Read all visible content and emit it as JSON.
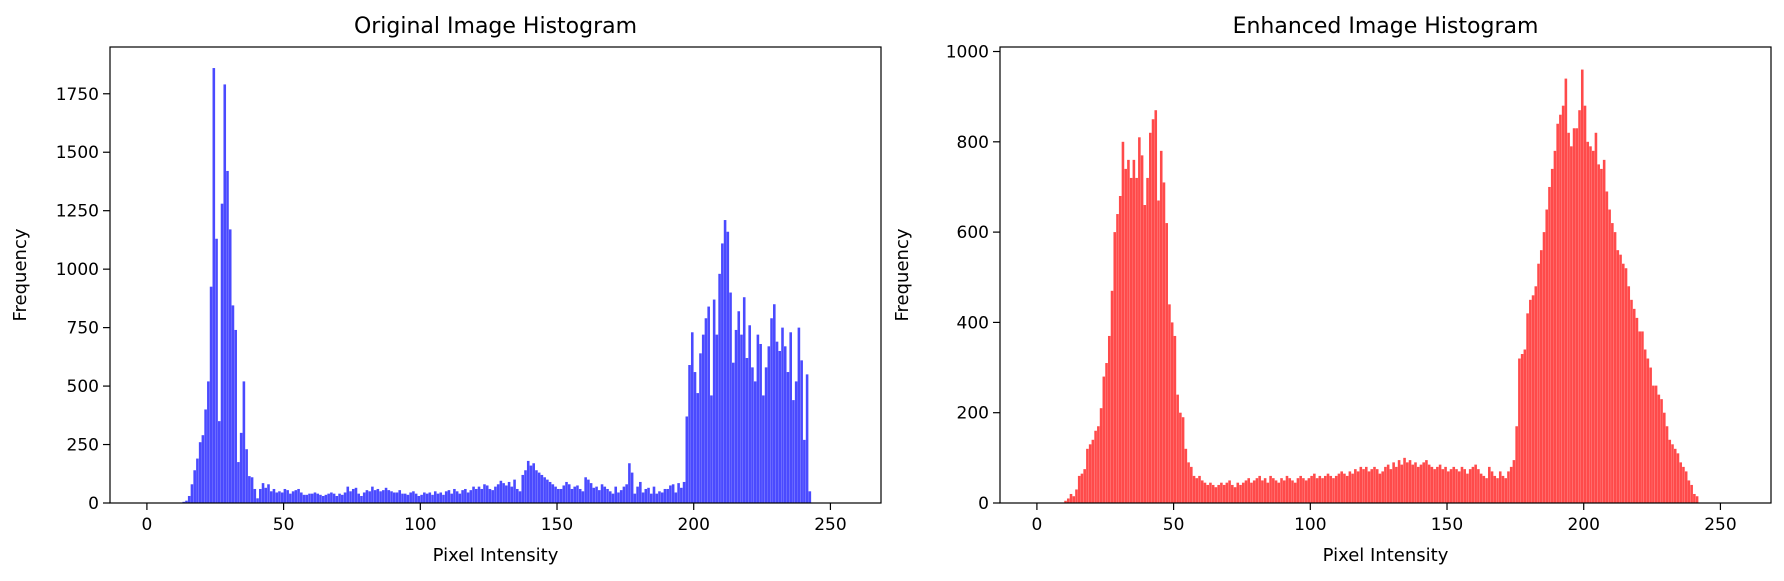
{
  "chart_data": [
    {
      "type": "bar",
      "title": "Original Image Histogram",
      "xlabel": "Pixel Intensity",
      "ylabel": "Frequency",
      "color": "#4a4aff",
      "xlim": [
        -13.5,
        268.5
      ],
      "ylim": [
        0,
        1950
      ],
      "xticks": [
        "0",
        "50",
        "100",
        "150",
        "200",
        "250"
      ],
      "yticks": [
        "0",
        "250",
        "500",
        "750",
        "1000",
        "1250",
        "1500",
        "1750"
      ],
      "xtick_values": [
        0,
        50,
        100,
        150,
        200,
        250
      ],
      "ytick_values": [
        0,
        250,
        500,
        750,
        1000,
        1250,
        1500,
        1750
      ],
      "grid": false,
      "bins": 256,
      "x_start": 0,
      "values": [
        0,
        0,
        0,
        0,
        0,
        0,
        0,
        0,
        0,
        0,
        0,
        0,
        0,
        5,
        10,
        30,
        80,
        140,
        190,
        260,
        290,
        400,
        520,
        925,
        1860,
        1130,
        350,
        1280,
        1790,
        1420,
        1170,
        845,
        740,
        175,
        300,
        520,
        230,
        115,
        110,
        60,
        20,
        60,
        85,
        65,
        80,
        50,
        60,
        45,
        50,
        45,
        60,
        55,
        40,
        50,
        55,
        60,
        45,
        35,
        35,
        40,
        40,
        45,
        40,
        35,
        30,
        35,
        40,
        45,
        40,
        30,
        40,
        35,
        45,
        70,
        50,
        60,
        65,
        40,
        30,
        45,
        55,
        50,
        70,
        55,
        60,
        50,
        55,
        65,
        55,
        50,
        45,
        45,
        55,
        40,
        40,
        35,
        45,
        50,
        40,
        30,
        35,
        45,
        40,
        45,
        35,
        50,
        40,
        45,
        35,
        50,
        55,
        40,
        60,
        50,
        40,
        55,
        60,
        45,
        55,
        70,
        60,
        70,
        60,
        80,
        75,
        60,
        55,
        70,
        80,
        95,
        85,
        75,
        90,
        70,
        100,
        60,
        50,
        120,
        140,
        180,
        160,
        170,
        140,
        130,
        120,
        110,
        100,
        90,
        80,
        70,
        60,
        60,
        75,
        90,
        80,
        60,
        70,
        75,
        60,
        50,
        110,
        100,
        85,
        65,
        70,
        55,
        80,
        70,
        60,
        50,
        40,
        70,
        45,
        55,
        70,
        80,
        170,
        130,
        40,
        70,
        90,
        45,
        60,
        65,
        40,
        70,
        40,
        50,
        45,
        60,
        60,
        75,
        80,
        45,
        85,
        65,
        90,
        370,
        590,
        730,
        560,
        470,
        640,
        720,
        790,
        840,
        460,
        870,
        720,
        980,
        1110,
        1210,
        1160,
        900,
        600,
        740,
        820,
        720,
        880,
        620,
        760,
        580,
        520,
        720,
        680,
        460,
        580,
        670,
        790,
        850,
        690,
        650,
        750,
        670,
        560,
        730,
        440,
        520,
        750,
        610,
        270,
        550,
        50,
        0,
        0,
        0,
        0,
        0,
        0,
        0,
        0,
        0,
        0,
        0,
        0,
        0,
        0,
        0,
        0
      ]
    },
    {
      "type": "bar",
      "title": "Enhanced Image Histogram",
      "xlabel": "Pixel Intensity",
      "ylabel": "Frequency",
      "color": "#ff4a4a",
      "xlim": [
        -13.5,
        268.5
      ],
      "ylim": [
        0,
        1010
      ],
      "xticks": [
        "0",
        "50",
        "100",
        "150",
        "200",
        "250"
      ],
      "yticks": [
        "0",
        "200",
        "400",
        "600",
        "800",
        "1000"
      ],
      "xtick_values": [
        0,
        50,
        100,
        150,
        200,
        250
      ],
      "ytick_values": [
        0,
        200,
        400,
        600,
        800,
        1000
      ],
      "grid": false,
      "bins": 256,
      "x_start": 0,
      "values": [
        0,
        0,
        0,
        0,
        0,
        0,
        0,
        0,
        0,
        0,
        5,
        10,
        20,
        15,
        30,
        60,
        65,
        75,
        120,
        130,
        140,
        160,
        170,
        210,
        280,
        310,
        370,
        470,
        600,
        640,
        680,
        800,
        740,
        760,
        720,
        760,
        720,
        810,
        770,
        660,
        720,
        820,
        850,
        870,
        670,
        780,
        710,
        620,
        440,
        400,
        370,
        240,
        200,
        190,
        120,
        90,
        80,
        60,
        55,
        60,
        50,
        45,
        40,
        45,
        40,
        35,
        40,
        45,
        40,
        45,
        50,
        40,
        35,
        45,
        40,
        45,
        50,
        55,
        45,
        50,
        55,
        60,
        50,
        55,
        45,
        60,
        55,
        50,
        45,
        55,
        50,
        60,
        55,
        50,
        45,
        55,
        60,
        55,
        50,
        55,
        60,
        65,
        55,
        60,
        55,
        60,
        65,
        60,
        55,
        60,
        65,
        70,
        65,
        60,
        70,
        65,
        75,
        70,
        80,
        75,
        80,
        70,
        75,
        80,
        75,
        65,
        70,
        80,
        85,
        75,
        90,
        80,
        95,
        85,
        100,
        90,
        95,
        85,
        90,
        80,
        85,
        90,
        95,
        85,
        80,
        75,
        80,
        85,
        75,
        80,
        70,
        75,
        80,
        75,
        70,
        80,
        75,
        65,
        75,
        80,
        85,
        75,
        65,
        60,
        55,
        80,
        70,
        60,
        55,
        70,
        60,
        55,
        70,
        80,
        95,
        170,
        320,
        330,
        340,
        420,
        450,
        460,
        480,
        530,
        560,
        600,
        650,
        700,
        740,
        780,
        840,
        860,
        880,
        940,
        820,
        790,
        830,
        830,
        870,
        960,
        880,
        800,
        790,
        780,
        820,
        750,
        740,
        760,
        690,
        650,
        620,
        600,
        560,
        550,
        530,
        520,
        480,
        450,
        430,
        410,
        380,
        380,
        340,
        320,
        300,
        260,
        260,
        240,
        230,
        200,
        170,
        140,
        130,
        120,
        110,
        90,
        80,
        70,
        50,
        40,
        20,
        15,
        0,
        0,
        0,
        0,
        0,
        0,
        0,
        0,
        0
      ]
    }
  ]
}
